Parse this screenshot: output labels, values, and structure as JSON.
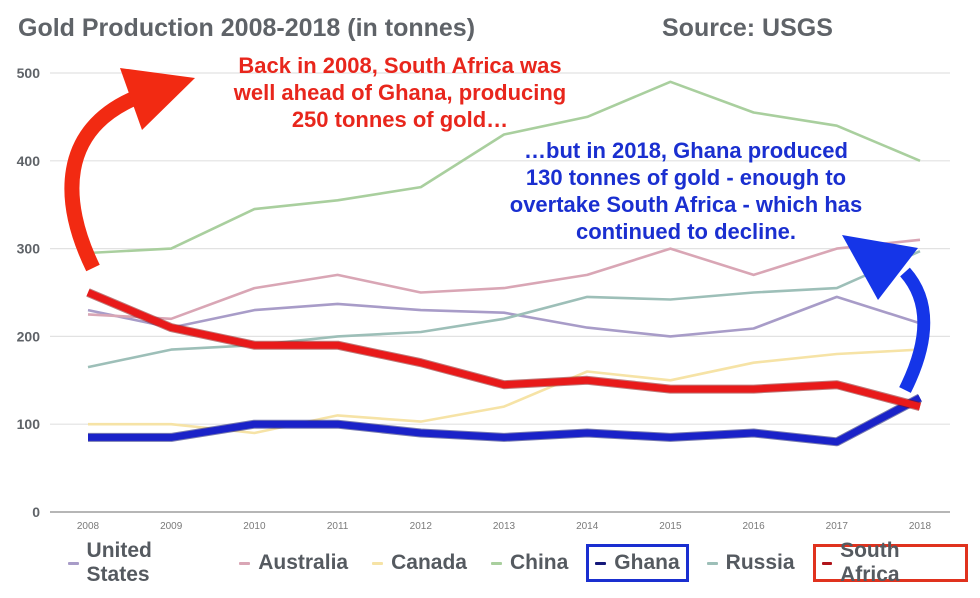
{
  "header": {
    "title": "Gold Production 2008-2018 (in tonnes)",
    "source": "Source: USGS"
  },
  "annotations": {
    "red_text": [
      "Back in 2008, South Africa was",
      "well ahead of Ghana, producing",
      "250 tonnes of gold…"
    ],
    "blue_text": [
      "…but in 2018, Ghana produced",
      "130 tonnes of gold - enough to",
      "overtake South Africa - which has",
      "continued to decline."
    ],
    "red_color": "#f22a12",
    "blue_color": "#1535e8"
  },
  "chart_data": {
    "type": "line",
    "title": "Gold Production 2008-2018 (in tonnes)",
    "xlabel": "",
    "ylabel": "",
    "x": [
      "2008",
      "2009",
      "2010",
      "2011",
      "2012",
      "2013",
      "2014",
      "2015",
      "2016",
      "2017",
      "2018"
    ],
    "ylim": [
      0,
      500
    ],
    "yticks": [
      "0",
      "100",
      "200",
      "300",
      "400",
      "500"
    ],
    "grid": true,
    "legend_position": "bottom",
    "series": [
      {
        "name": "United States",
        "color": "#a89cc8",
        "emphasis": false,
        "values": [
          230,
          210,
          230,
          237,
          230,
          227,
          210,
          200,
          209,
          245,
          215
        ]
      },
      {
        "name": "Australia",
        "color": "#d9a6b5",
        "emphasis": false,
        "values": [
          225,
          220,
          255,
          270,
          250,
          255,
          270,
          300,
          270,
          300,
          310
        ]
      },
      {
        "name": "Canada",
        "color": "#f6e3a6",
        "emphasis": false,
        "values": [
          100,
          100,
          90,
          110,
          103,
          120,
          160,
          150,
          170,
          180,
          185
        ]
      },
      {
        "name": "China",
        "color": "#a9cf9e",
        "emphasis": false,
        "values": [
          295,
          300,
          345,
          355,
          370,
          430,
          450,
          490,
          455,
          440,
          400
        ]
      },
      {
        "name": "Ghana",
        "color": "#1a22c8",
        "emphasis": true,
        "values": [
          85,
          85,
          100,
          100,
          90,
          85,
          90,
          85,
          90,
          80,
          130
        ]
      },
      {
        "name": "Russia",
        "color": "#9dbfb8",
        "emphasis": false,
        "values": [
          165,
          185,
          190,
          200,
          205,
          220,
          245,
          242,
          250,
          255,
          297
        ]
      },
      {
        "name": "South Africa",
        "color": "#e81a1a",
        "emphasis": true,
        "values": [
          250,
          210,
          190,
          190,
          170,
          145,
          150,
          140,
          140,
          145,
          120
        ]
      }
    ],
    "legend_highlight": {
      "Ghana": "#1a2fd0",
      "South Africa": "#e0321e"
    }
  }
}
